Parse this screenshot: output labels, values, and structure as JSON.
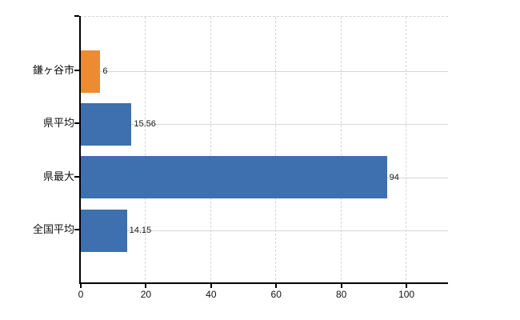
{
  "chart_data": {
    "type": "bar",
    "orientation": "horizontal",
    "title": "",
    "categories": [
      "鎌ヶ谷市",
      "県平均",
      "県最大",
      "全国平均"
    ],
    "values": [
      6,
      15.56,
      94,
      14.15
    ],
    "value_labels": [
      "6",
      "15.56",
      "94",
      "14.15"
    ],
    "x_tick_labels": [
      "0",
      "20",
      "40",
      "60",
      "80",
      "100"
    ],
    "x_tick_values": [
      0,
      20,
      40,
      60,
      80,
      100
    ],
    "xlim": [
      0,
      113
    ],
    "grid": "on",
    "legend": "none",
    "colors": {
      "highlight_bar": "#ED8B33",
      "default_bar": "#3E6FAE",
      "highlight_index": 0,
      "vertical_grid": "#d8d2d6",
      "horizontal_grid": "#d3d9d3",
      "axis": "#000000",
      "text": "#111111"
    }
  }
}
